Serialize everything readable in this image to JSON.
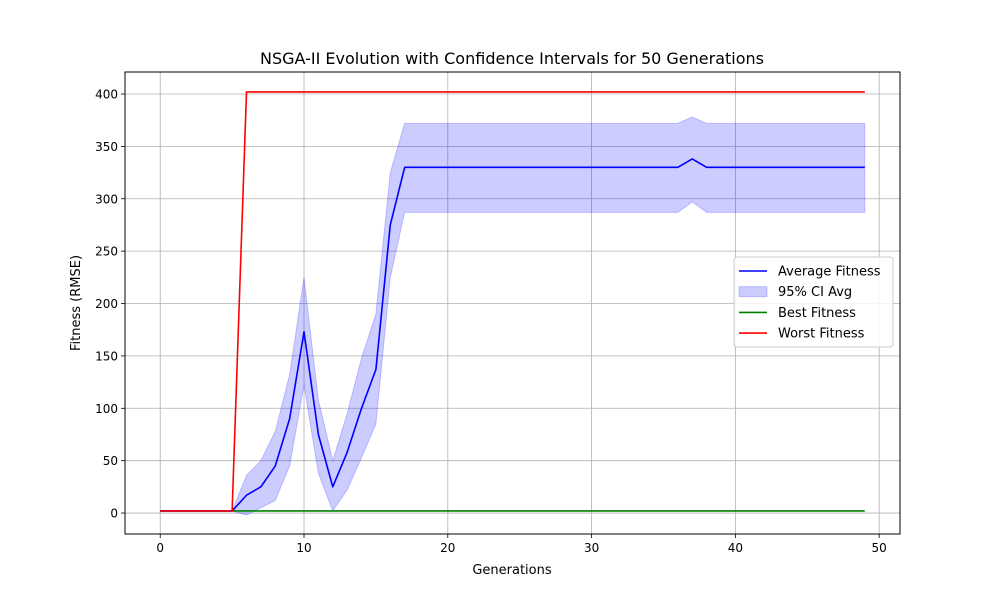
{
  "chart_data": {
    "type": "line",
    "title": "NSGA-II Evolution with Confidence Intervals for 50 Generations",
    "xlabel": "Generations",
    "ylabel": "Fitness (RMSE)",
    "xlim": [
      -2.45,
      51.45
    ],
    "ylim": [
      -20,
      421
    ],
    "xticks": [
      0,
      10,
      20,
      30,
      40,
      50
    ],
    "yticks": [
      0,
      50,
      100,
      150,
      200,
      250,
      300,
      350,
      400
    ],
    "grid": true,
    "legend_position": "center-right",
    "x": [
      0,
      1,
      2,
      3,
      4,
      5,
      6,
      7,
      8,
      9,
      10,
      11,
      12,
      13,
      14,
      15,
      16,
      17,
      18,
      19,
      20,
      21,
      22,
      23,
      24,
      25,
      26,
      27,
      28,
      29,
      30,
      31,
      32,
      33,
      34,
      35,
      36,
      37,
      38,
      39,
      40,
      41,
      42,
      43,
      44,
      45,
      46,
      47,
      48,
      49
    ],
    "series": [
      {
        "name": "Average Fitness",
        "kind": "line",
        "color": "#0000ff",
        "values": [
          2,
          2,
          2,
          2,
          2,
          2,
          17,
          25,
          45,
          90,
          173,
          75,
          25,
          58,
          100,
          137,
          275,
          330,
          330,
          330,
          330,
          330,
          330,
          330,
          330,
          330,
          330,
          330,
          330,
          330,
          330,
          330,
          330,
          330,
          330,
          330,
          330,
          338,
          330,
          330,
          330,
          330,
          330,
          330,
          330,
          330,
          330,
          330,
          330,
          330
        ]
      },
      {
        "name": "95% CI Avg",
        "kind": "band",
        "color": "#0000ff",
        "lower": [
          2,
          2,
          2,
          2,
          2,
          2,
          -2,
          5,
          12,
          45,
          122,
          38,
          2,
          22,
          53,
          85,
          225,
          287,
          287,
          287,
          287,
          287,
          287,
          287,
          287,
          287,
          287,
          287,
          287,
          287,
          287,
          287,
          287,
          287,
          287,
          287,
          287,
          297,
          287,
          287,
          287,
          287,
          287,
          287,
          287,
          287,
          287,
          287,
          287,
          287
        ],
        "upper": [
          2,
          2,
          2,
          2,
          2,
          2,
          36,
          50,
          78,
          132,
          225,
          108,
          50,
          95,
          148,
          190,
          325,
          372,
          372,
          372,
          372,
          372,
          372,
          372,
          372,
          372,
          372,
          372,
          372,
          372,
          372,
          372,
          372,
          372,
          372,
          372,
          372,
          378,
          372,
          372,
          372,
          372,
          372,
          372,
          372,
          372,
          372,
          372,
          372,
          372
        ]
      },
      {
        "name": "Best Fitness",
        "kind": "line",
        "color": "#008000",
        "values": [
          2,
          2,
          2,
          2,
          2,
          2,
          2,
          2,
          2,
          2,
          2,
          2,
          2,
          2,
          2,
          2,
          2,
          2,
          2,
          2,
          2,
          2,
          2,
          2,
          2,
          2,
          2,
          2,
          2,
          2,
          2,
          2,
          2,
          2,
          2,
          2,
          2,
          2,
          2,
          2,
          2,
          2,
          2,
          2,
          2,
          2,
          2,
          2,
          2,
          2
        ]
      },
      {
        "name": "Worst Fitness",
        "kind": "line",
        "color": "#ff0000",
        "values": [
          2,
          2,
          2,
          2,
          2,
          2,
          402,
          402,
          402,
          402,
          402,
          402,
          402,
          402,
          402,
          402,
          402,
          402,
          402,
          402,
          402,
          402,
          402,
          402,
          402,
          402,
          402,
          402,
          402,
          402,
          402,
          402,
          402,
          402,
          402,
          402,
          402,
          402,
          402,
          402,
          402,
          402,
          402,
          402,
          402,
          402,
          402,
          402,
          402,
          402
        ]
      }
    ]
  }
}
